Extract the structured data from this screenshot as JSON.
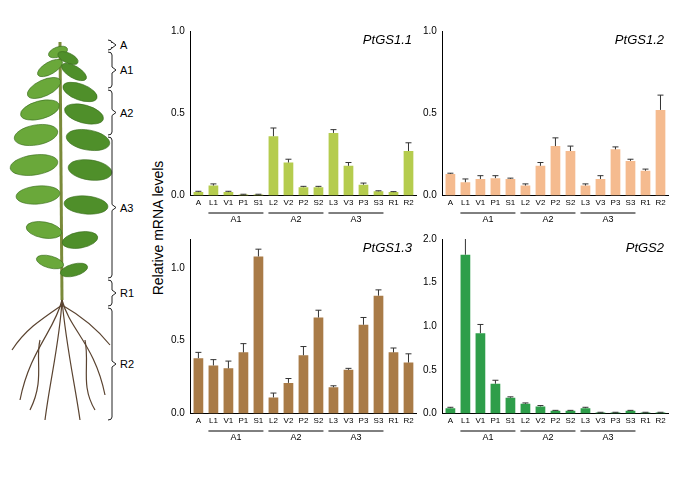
{
  "ylabel": "Relative mRNA levels",
  "plant_labels": [
    "A",
    "A1",
    "A2",
    "A3",
    "R1",
    "R2"
  ],
  "chart_data": [
    {
      "type": "bar",
      "title": "PtGS1.1",
      "categories": [
        "A",
        "L1",
        "V1",
        "P1",
        "S1",
        "L2",
        "V2",
        "P2",
        "S2",
        "L3",
        "V3",
        "P3",
        "S3",
        "R1",
        "R2"
      ],
      "groups": [
        {
          "name": "A1",
          "categories": [
            "L1",
            "V1",
            "P1",
            "S1"
          ]
        },
        {
          "name": "A2",
          "categories": [
            "L2",
            "V2",
            "P2",
            "S2"
          ]
        },
        {
          "name": "A3",
          "categories": [
            "L3",
            "V3",
            "P3",
            "S3"
          ]
        }
      ],
      "values": [
        0.02,
        0.06,
        0.02,
        0.005,
        0.005,
        0.36,
        0.2,
        0.05,
        0.05,
        0.38,
        0.18,
        0.065,
        0.025,
        0.02,
        0.27
      ],
      "errors": [
        0.005,
        0.01,
        0.005,
        0.002,
        0.002,
        0.05,
        0.02,
        0.005,
        0.005,
        0.02,
        0.02,
        0.01,
        0.003,
        0.003,
        0.05
      ],
      "color": "#b5cc4e",
      "ylim": [
        0,
        1
      ],
      "yticks": [
        {
          "value": 0,
          "label": "0.0"
        },
        {
          "value": 0.5,
          "label": "0.5"
        },
        {
          "value": 1,
          "label": "1.0"
        }
      ],
      "grid": false
    },
    {
      "type": "bar",
      "title": "PtGS1.2",
      "categories": [
        "A",
        "L1",
        "V1",
        "P1",
        "S1",
        "L2",
        "V2",
        "P2",
        "S2",
        "L3",
        "V3",
        "P3",
        "S3",
        "R1",
        "R2"
      ],
      "groups": [
        {
          "name": "A1",
          "categories": [
            "L1",
            "V1",
            "P1",
            "S1"
          ]
        },
        {
          "name": "A2",
          "categories": [
            "L2",
            "V2",
            "P2",
            "S2"
          ]
        },
        {
          "name": "A3",
          "categories": [
            "L3",
            "V3",
            "P3",
            "S3"
          ]
        }
      ],
      "values": [
        0.13,
        0.08,
        0.1,
        0.105,
        0.1,
        0.06,
        0.18,
        0.3,
        0.27,
        0.06,
        0.1,
        0.28,
        0.21,
        0.15,
        0.52
      ],
      "errors": [
        0.005,
        0.02,
        0.02,
        0.015,
        0.005,
        0.01,
        0.02,
        0.05,
        0.03,
        0.01,
        0.02,
        0.015,
        0.01,
        0.01,
        0.09
      ],
      "color": "#f5bb8f",
      "ylim": [
        0,
        1
      ],
      "yticks": [
        {
          "value": 0,
          "label": "0.0"
        },
        {
          "value": 0.5,
          "label": "0.5"
        },
        {
          "value": 1,
          "label": "1.0"
        }
      ],
      "grid": false
    },
    {
      "type": "bar",
      "title": "PtGS1.3",
      "categories": [
        "A",
        "L1",
        "V1",
        "P1",
        "S1",
        "L2",
        "V2",
        "P2",
        "S2",
        "L3",
        "V3",
        "P3",
        "S3",
        "R1",
        "R2"
      ],
      "groups": [
        {
          "name": "A1",
          "categories": [
            "L1",
            "V1",
            "P1",
            "S1"
          ]
        },
        {
          "name": "A2",
          "categories": [
            "L2",
            "V2",
            "P2",
            "S2"
          ]
        },
        {
          "name": "A3",
          "categories": [
            "L3",
            "V3",
            "P3",
            "S3"
          ]
        }
      ],
      "values": [
        0.38,
        0.33,
        0.31,
        0.42,
        1.08,
        0.11,
        0.21,
        0.4,
        0.66,
        0.18,
        0.3,
        0.61,
        0.81,
        0.42,
        0.35
      ],
      "errors": [
        0.04,
        0.04,
        0.05,
        0.06,
        0.05,
        0.03,
        0.03,
        0.06,
        0.05,
        0.01,
        0.01,
        0.05,
        0.04,
        0.03,
        0.06
      ],
      "color": "#a97b47",
      "ylim": [
        0,
        1.2
      ],
      "yticks": [
        {
          "value": 0,
          "label": "0.0"
        },
        {
          "value": 0.5,
          "label": "0.5"
        },
        {
          "value": 1,
          "label": "1.0"
        }
      ],
      "grid": false
    },
    {
      "type": "bar",
      "title": "PtGS2",
      "categories": [
        "A",
        "L1",
        "V1",
        "P1",
        "S1",
        "L2",
        "V2",
        "P2",
        "S2",
        "L3",
        "V3",
        "P3",
        "S3",
        "R1",
        "R2"
      ],
      "groups": [
        {
          "name": "A1",
          "categories": [
            "L1",
            "V1",
            "P1",
            "S1"
          ]
        },
        {
          "name": "A2",
          "categories": [
            "L2",
            "V2",
            "P2",
            "S2"
          ]
        },
        {
          "name": "A3",
          "categories": [
            "L3",
            "V3",
            "P3",
            "S3"
          ]
        }
      ],
      "values": [
        0.06,
        1.82,
        0.92,
        0.34,
        0.18,
        0.11,
        0.08,
        0.03,
        0.03,
        0.06,
        0.01,
        0.01,
        0.03,
        0.01,
        0.01
      ],
      "errors": [
        0.01,
        0.22,
        0.1,
        0.04,
        0.01,
        0.01,
        0.01,
        0.005,
        0.005,
        0.01,
        0.003,
        0.003,
        0.005,
        0.003,
        0.003
      ],
      "color": "#2e9e4a",
      "ylim": [
        0,
        2
      ],
      "yticks": [
        {
          "value": 0,
          "label": "0.0"
        },
        {
          "value": 0.5,
          "label": "0.5"
        },
        {
          "value": 1,
          "label": "1.0"
        },
        {
          "value": 1.5,
          "label": "1.5"
        },
        {
          "value": 2,
          "label": "2.0"
        }
      ],
      "grid": false
    }
  ]
}
